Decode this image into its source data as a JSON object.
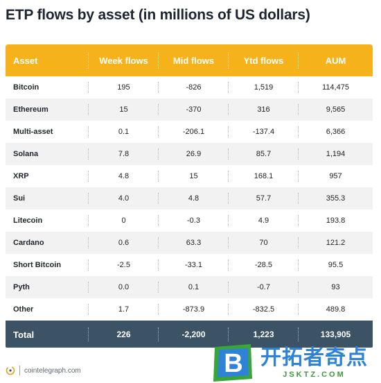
{
  "title": "ETP flows by asset (in millions of US dollars)",
  "table": {
    "headers": [
      "Asset",
      "Week flows",
      "Mid flows",
      "Ytd flows",
      "AUM"
    ],
    "rows": [
      [
        "Bitcoin",
        "195",
        "-826",
        "1,519",
        "114,475"
      ],
      [
        "Ethereum",
        "15",
        "-370",
        "316",
        "9,565"
      ],
      [
        "Multi-asset",
        "0.1",
        "-206.1",
        "-137.4",
        "6,366"
      ],
      [
        "Solana",
        "7.8",
        "26.9",
        "85.7",
        "1,194"
      ],
      [
        "XRP",
        "4.8",
        "15",
        "168.1",
        "957"
      ],
      [
        "Sui",
        "4.0",
        "4.8",
        "57.7",
        "355.3"
      ],
      [
        "Litecoin",
        "0",
        "-0.3",
        "4.9",
        "193.8"
      ],
      [
        "Cardano",
        "0.6",
        "63.3",
        "70",
        "121.2"
      ],
      [
        "Short Bitcoin",
        "-2.5",
        "-33.1",
        "-28.5",
        "95.5"
      ],
      [
        "Pyth",
        "0.0",
        "0.1",
        "-0.7",
        "93"
      ],
      [
        "Other",
        "1.7",
        "-873.9",
        "-832.5",
        "489.8"
      ]
    ],
    "total": [
      "Total",
      "226",
      "-2,200",
      "1,223",
      "133,905"
    ]
  },
  "footer": {
    "brand_text": "cointelegraph.com",
    "brand_icon": "cointelegraph-logo"
  },
  "watermark": {
    "badge_letter": "B",
    "cn_text": "开拓者奇点",
    "en_text": "JSKTZ.COM"
  },
  "colors": {
    "header_bg": "#f6b21a",
    "total_bg": "#3b5365",
    "row_alt_bg": "#f2f2f2"
  }
}
